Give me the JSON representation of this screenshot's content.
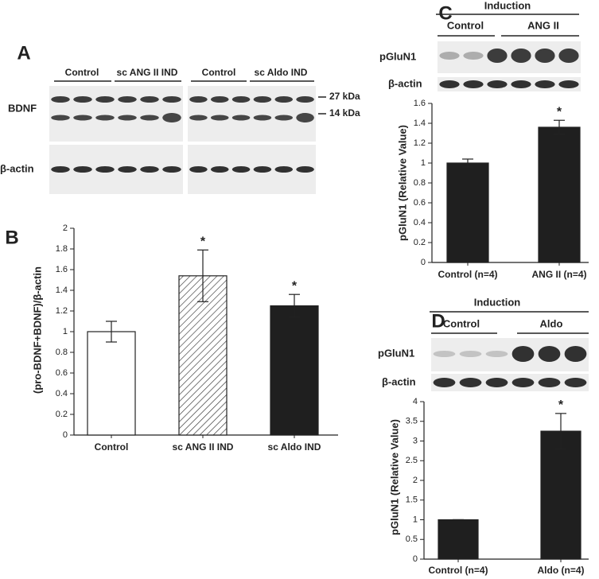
{
  "blots": {
    "A": {
      "label": "A",
      "groups": [
        "Control",
        "sc ANG II IND",
        "Control",
        "sc Aldo IND"
      ],
      "rows": [
        "BDNF",
        "β-actin"
      ],
      "markers": [
        "27 kDa",
        "14 kDa"
      ]
    },
    "C": {
      "label": "C",
      "header": "Induction",
      "groups": [
        "Control",
        "ANG II"
      ],
      "rows": [
        "pGluN1",
        "β-actin"
      ]
    },
    "D": {
      "label": "D",
      "header": "Induction",
      "groups": [
        "Control",
        "Aldo"
      ],
      "rows": [
        "pGluN1",
        "β-actin"
      ]
    }
  },
  "chart_data": [
    {
      "type": "bar",
      "panel": "B",
      "ylabel": "(pro-BDNF+BDNF)/β-actin",
      "categories": [
        "Control",
        "sc ANG II IND",
        "sc Aldo IND"
      ],
      "values": [
        1.0,
        1.54,
        1.25
      ],
      "errors": [
        0.1,
        0.25,
        0.11
      ],
      "significance": [
        null,
        "*",
        "*"
      ],
      "colors": [
        "#ffffff",
        "#ffffff",
        "#1f1f1f"
      ],
      "hatch": [
        false,
        true,
        false
      ],
      "ylim": [
        0,
        2
      ],
      "yticks": [
        0,
        0.2,
        0.4,
        0.6,
        0.8,
        1,
        1.2,
        1.4,
        1.6,
        1.8,
        2
      ],
      "grid": false
    },
    {
      "type": "bar",
      "ylabel": "pGluN1 (Relative Value)",
      "categories": [
        "Control (n=4)",
        "ANG II (n=4)"
      ],
      "values": [
        1.0,
        1.36
      ],
      "errors": [
        0.04,
        0.07
      ],
      "significance": [
        null,
        "*"
      ],
      "colors": [
        "#1f1f1f",
        "#1f1f1f"
      ],
      "hatch": [
        false,
        false
      ],
      "ylim": [
        0,
        1.6
      ],
      "yticks": [
        0,
        0.2,
        0.4,
        0.6,
        0.8,
        1,
        1.2,
        1.4,
        1.6
      ],
      "grid": false
    },
    {
      "type": "bar",
      "ylabel": "pGluN1 (Relative Value)",
      "categories": [
        "Control (n=4)",
        "Aldo (n=4)"
      ],
      "values": [
        1.0,
        3.25
      ],
      "errors": [
        0,
        0.45
      ],
      "significance": [
        null,
        "*"
      ],
      "colors": [
        "#1f1f1f",
        "#1f1f1f"
      ],
      "hatch": [
        false,
        false
      ],
      "ylim": [
        0,
        4
      ],
      "yticks": [
        0,
        0.5,
        1,
        1.5,
        2,
        2.5,
        3,
        3.5,
        4
      ],
      "grid": false
    }
  ]
}
